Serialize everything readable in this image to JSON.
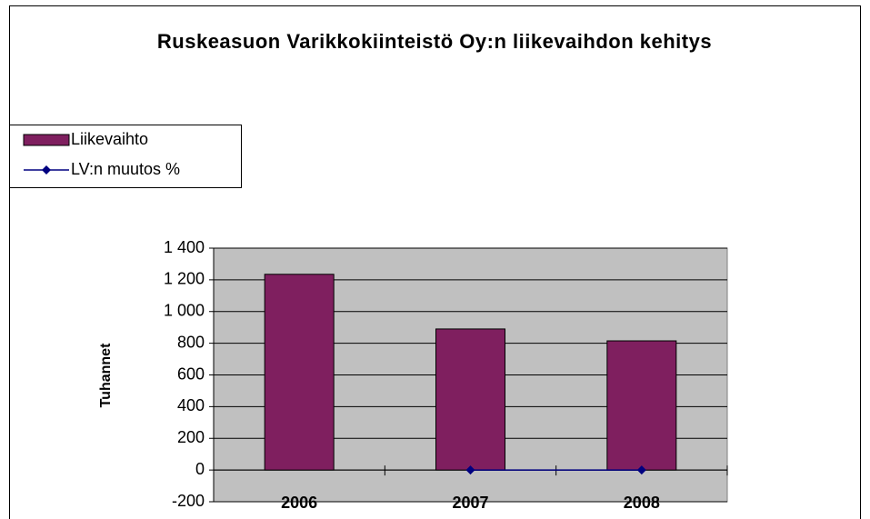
{
  "chart_data": {
    "type": "bar",
    "title": "Ruskeasuon Varikkokiinteistö Oy:n liikevaihdon kehitys",
    "y_label": "Tuhannet",
    "categories": [
      "2006",
      "2007",
      "2008"
    ],
    "series": [
      {
        "name": "Liikevaihto",
        "type": "bar",
        "color": "#7f1f5f",
        "values": [
          1235,
          890,
          815
        ]
      },
      {
        "name": "LV:n muutos %",
        "type": "line",
        "color": "#000080",
        "values": [
          null,
          0,
          0
        ]
      }
    ],
    "ylim": [
      -200,
      1400
    ],
    "yticks": [
      -200,
      0,
      200,
      400,
      600,
      800,
      {
        "value": 1000,
        "label": "1 000"
      },
      {
        "value": 1200,
        "label": "1 200"
      },
      {
        "value": 1400,
        "label": "1 400"
      }
    ],
    "grid": true,
    "plot_background": "#c0c0c0",
    "legend": "top-left"
  }
}
